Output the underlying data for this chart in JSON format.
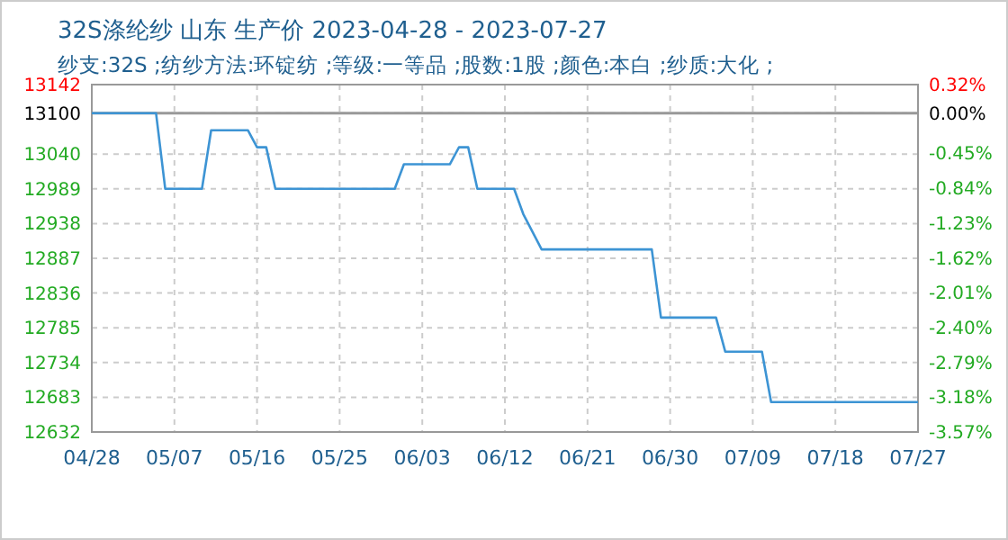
{
  "chart_data": {
    "type": "line",
    "title": "32S涤纶纱 山东 生产价 2023-04-28 - 2023-07-27",
    "subtitle": "纱支:32S ;纺纱方法:环锭纺 ;等级:一等品 ;股数:1股 ;颜色:本白 ;纱质:大化 ;",
    "x": [
      "2023-04-28",
      "2023-05-05",
      "2023-05-06",
      "2023-05-10",
      "2023-05-11",
      "2023-05-15",
      "2023-05-16",
      "2023-05-17",
      "2023-05-18",
      "2023-05-31",
      "2023-06-01",
      "2023-06-06",
      "2023-06-07",
      "2023-06-08",
      "2023-06-09",
      "2023-06-13",
      "2023-06-14",
      "2023-06-16",
      "2023-06-28",
      "2023-06-29",
      "2023-07-05",
      "2023-07-06",
      "2023-07-10",
      "2023-07-11",
      "2023-07-27"
    ],
    "series": [
      {
        "color": "#3d94d4",
        "values": [
          13100,
          13100,
          12989,
          12989,
          13075,
          13075,
          13050,
          13050,
          12989,
          12989,
          13025,
          13025,
          13050,
          13050,
          12989,
          12989,
          12952,
          12900,
          12900,
          12800,
          12800,
          12750,
          12750,
          12676,
          12676
        ]
      }
    ],
    "xlim": [
      "2023-04-28",
      "2023-07-27"
    ],
    "xticks": [
      {
        "value": "2023-04-28",
        "label": "04/28"
      },
      {
        "value": "2023-05-07",
        "label": "05/07"
      },
      {
        "value": "2023-05-16",
        "label": "05/16"
      },
      {
        "value": "2023-05-25",
        "label": "05/25"
      },
      {
        "value": "2023-06-03",
        "label": "06/03"
      },
      {
        "value": "2023-06-12",
        "label": "06/12"
      },
      {
        "value": "2023-06-21",
        "label": "06/21"
      },
      {
        "value": "2023-06-30",
        "label": "06/30"
      },
      {
        "value": "2023-07-09",
        "label": "07/09"
      },
      {
        "value": "2023-07-18",
        "label": "07/18"
      },
      {
        "value": "2023-07-27",
        "label": "07/27"
      }
    ],
    "ylim": [
      12632,
      13142
    ],
    "yticks": [
      12632,
      12683,
      12734,
      12785,
      12836,
      12887,
      12938,
      12989,
      13040,
      13100,
      13142
    ],
    "y2lim": [
      -3.57,
      0.32
    ],
    "y2ticks": [
      {
        "value": -3.57,
        "label": "-3.57%"
      },
      {
        "value": -3.18,
        "label": "-3.18%"
      },
      {
        "value": -2.79,
        "label": "-2.79%"
      },
      {
        "value": -2.4,
        "label": "-2.40%"
      },
      {
        "value": -2.01,
        "label": "-2.01%"
      },
      {
        "value": -1.62,
        "label": "-1.62%"
      },
      {
        "value": -1.23,
        "label": "-1.23%"
      },
      {
        "value": -0.84,
        "label": "-0.84%"
      },
      {
        "value": -0.45,
        "label": "-0.45%"
      },
      {
        "value": 0,
        "label": "0.00%"
      },
      {
        "value": 0.32,
        "label": "0.32%"
      }
    ],
    "ref_lines": [
      {
        "axis": "y",
        "value": 13100,
        "color": "#999999"
      }
    ],
    "grid": true,
    "marker": "none",
    "line_style": "solid"
  }
}
